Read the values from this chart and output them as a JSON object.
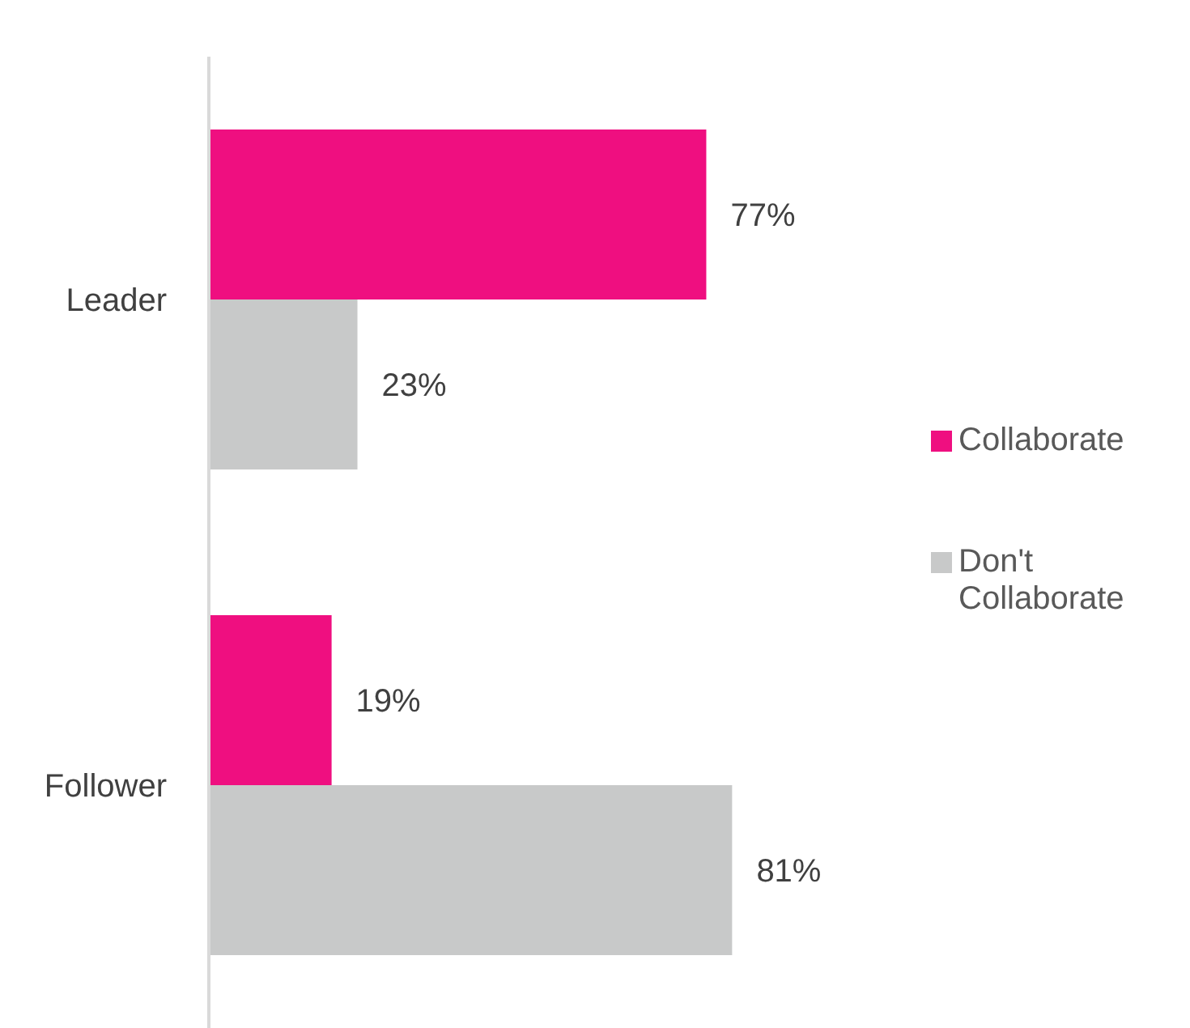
{
  "chart_data": {
    "type": "bar",
    "orientation": "horizontal",
    "categories": [
      "Leader",
      "Follower"
    ],
    "series": [
      {
        "name": "Collaborate",
        "color": "#ef0f80",
        "values": [
          77,
          19
        ],
        "value_labels": [
          "77%",
          "19%"
        ]
      },
      {
        "name": "Don't Collaborate",
        "color": "#c8c9c9",
        "values": [
          23,
          81
        ],
        "value_labels": [
          "23%",
          "81%"
        ]
      }
    ],
    "legend": "right",
    "grid": false
  }
}
